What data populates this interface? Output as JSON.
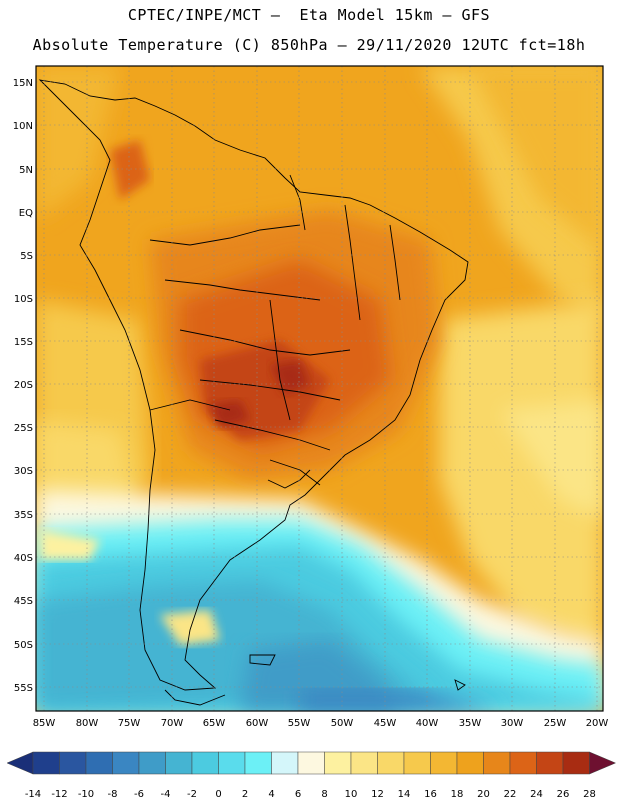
{
  "header": {
    "line1": "CPTEC/INPE/MCT –  Eta Model 15km – GFS",
    "line2": "Absolute Temperature (C) 850hPa – 29/11/2020 12UTC fct=18h"
  },
  "axes": {
    "lat_labels": [
      "15N",
      "10N",
      "5N",
      "EQ",
      "5S",
      "10S",
      "15S",
      "20S",
      "25S",
      "30S",
      "35S",
      "40S",
      "45S",
      "50S",
      "55S"
    ],
    "lon_labels": [
      "85W",
      "80W",
      "75W",
      "70W",
      "65W",
      "60W",
      "55W",
      "50W",
      "45W",
      "40W",
      "35W",
      "30W",
      "25W",
      "20W"
    ]
  },
  "colorbar": {
    "ticks": [
      "-14",
      "-12",
      "-10",
      "-8",
      "-6",
      "-4",
      "-2",
      "0",
      "2",
      "4",
      "6",
      "8",
      "10",
      "12",
      "14",
      "16",
      "18",
      "20",
      "22",
      "24",
      "26",
      "28"
    ],
    "colors": [
      "#1f3f8c",
      "#2a56a0",
      "#2f6eb2",
      "#3a86c2",
      "#3f9cc8",
      "#45b4d2",
      "#4ccbe0",
      "#5adcec",
      "#6cf0f6",
      "#d4f6fa",
      "#fdf8e0",
      "#fdf1a0",
      "#fbe586",
      "#f9d868",
      "#f6c94c",
      "#f3b733",
      "#eea21d",
      "#e7861a",
      "#dc6417",
      "#c44515",
      "#a82c12",
      "#842012"
    ],
    "low_color": "#1a2f78",
    "high_color": "#6e1030"
  }
}
